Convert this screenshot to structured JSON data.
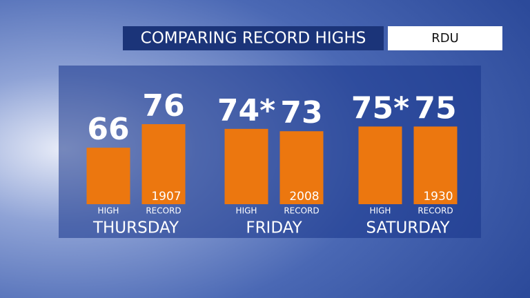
{
  "chart_data": {
    "type": "bar",
    "title": "COMPARING RECORD HIGHS",
    "location": "RDU",
    "categories": [
      "THURSDAY",
      "FRIDAY",
      "SATURDAY"
    ],
    "series": [
      {
        "name": "HIGH",
        "color": "#ec770f",
        "values": [
          66,
          74,
          75
        ],
        "value_labels": [
          "66",
          "74*",
          "75*"
        ]
      },
      {
        "name": "RECORD",
        "color": "#ec770f",
        "values": [
          76,
          73,
          75
        ],
        "record_years": [
          "1907",
          "2008",
          "1930"
        ]
      }
    ],
    "ylim": [
      42,
      76
    ]
  }
}
